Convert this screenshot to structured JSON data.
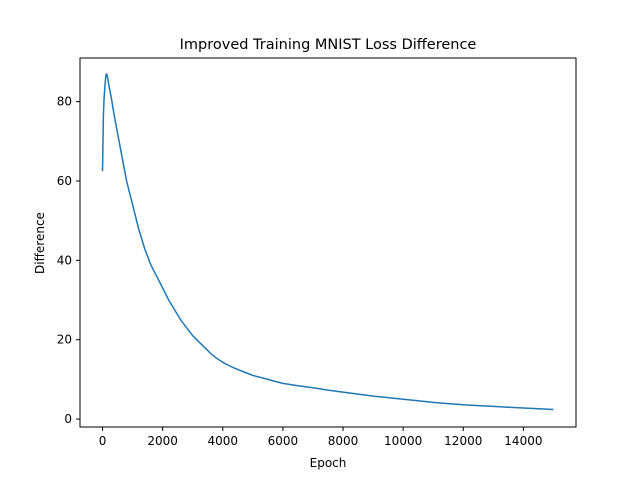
{
  "chart_data": {
    "type": "line",
    "title": "Improved Training MNIST Loss Difference",
    "xlabel": "Epoch",
    "ylabel": "Difference",
    "xlim": [
      -750,
      15750
    ],
    "ylim": [
      -2,
      91
    ],
    "xticks": [
      0,
      2000,
      4000,
      6000,
      8000,
      10000,
      12000,
      14000
    ],
    "yticks": [
      0,
      20,
      40,
      60,
      80
    ],
    "grid": false,
    "legend": "none",
    "series": [
      {
        "color": "#1f77b4",
        "x": [
          0,
          15,
          30,
          50,
          75,
          100,
          125,
          150,
          175,
          200,
          250,
          300,
          400,
          500,
          600,
          700,
          800,
          900,
          1000,
          1100,
          1200,
          1300,
          1400,
          1500,
          1600,
          1700,
          1800,
          1900,
          2000,
          2200,
          2400,
          2600,
          2800,
          3000,
          3200,
          3400,
          3600,
          3800,
          4000,
          4200,
          4400,
          4600,
          4800,
          5000,
          5500,
          6000,
          6500,
          7000,
          7500,
          8000,
          8500,
          9000,
          9500,
          10000,
          10500,
          11000,
          11500,
          12000,
          12500,
          13000,
          13500,
          14000,
          14500,
          15000
        ],
        "y": [
          62.5,
          70,
          76.5,
          80.5,
          83.5,
          86,
          87,
          86.7,
          85.8,
          84.5,
          82.5,
          80.5,
          76,
          72,
          68,
          64,
          60,
          57,
          54,
          51,
          48,
          45.5,
          43,
          41,
          39,
          37.5,
          36,
          34.5,
          33,
          30,
          27.5,
          25,
          23,
          21,
          19.5,
          18,
          16.5,
          15.3,
          14.3,
          13.5,
          12.8,
          12.2,
          11.6,
          11,
          10,
          9,
          8.4,
          7.9,
          7.3,
          6.8,
          6.3,
          5.8,
          5.4,
          5,
          4.6,
          4.2,
          3.9,
          3.6,
          3.4,
          3.2,
          3,
          2.8,
          2.6,
          2.4
        ]
      }
    ]
  }
}
